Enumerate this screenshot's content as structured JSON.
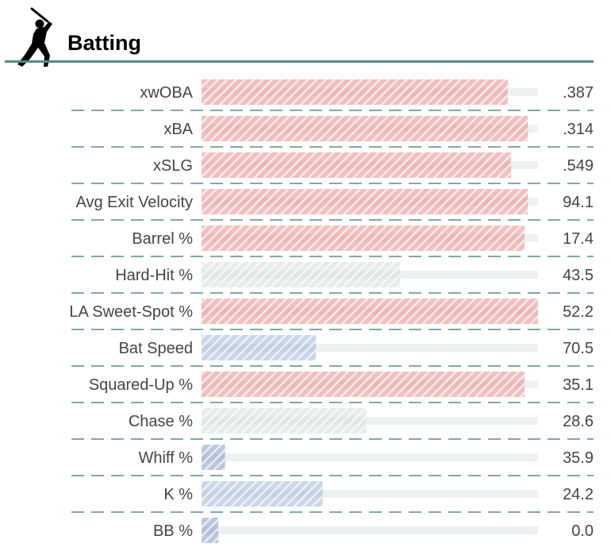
{
  "header": {
    "title": "Batting",
    "icon": "batter-silhouette-icon",
    "rule_color": "#5a8a8a"
  },
  "colors": {
    "high": "#e38a88",
    "neutral": "#cfdcd8",
    "low": "#9fb2d2",
    "very_low": "#7f96c2",
    "track": "#edf1f1",
    "divider": "#5a8a8a"
  },
  "chart_data": {
    "type": "bar",
    "orientation": "horizontal",
    "title": "Batting",
    "percentile_range": [
      0,
      100
    ],
    "grid": false,
    "legend": "none",
    "rows": [
      {
        "label": "xwOBA",
        "value_text": ".387",
        "percentile": 91,
        "tier": "high"
      },
      {
        "label": "xBA",
        "value_text": ".314",
        "percentile": 97,
        "tier": "high"
      },
      {
        "label": "xSLG",
        "value_text": ".549",
        "percentile": 92,
        "tier": "high"
      },
      {
        "label": "Avg Exit Velocity",
        "value_text": "94.1",
        "percentile": 97,
        "tier": "high"
      },
      {
        "label": "Barrel %",
        "value_text": "17.4",
        "percentile": 96,
        "tier": "high"
      },
      {
        "label": "Hard-Hit %",
        "value_text": "43.5",
        "percentile": 59,
        "tier": "neutral"
      },
      {
        "label": "LA Sweet-Spot %",
        "value_text": "52.2",
        "percentile": 100,
        "tier": "high"
      },
      {
        "label": "Bat Speed",
        "value_text": "70.5",
        "percentile": 34,
        "tier": "low"
      },
      {
        "label": "Squared-Up %",
        "value_text": "35.1",
        "percentile": 96,
        "tier": "high"
      },
      {
        "label": "Chase %",
        "value_text": "28.6",
        "percentile": 49,
        "tier": "neutral"
      },
      {
        "label": "Whiff %",
        "value_text": "35.9",
        "percentile": 7,
        "tier": "very_low"
      },
      {
        "label": "K %",
        "value_text": "24.2",
        "percentile": 36,
        "tier": "low"
      },
      {
        "label": "BB %",
        "value_text": "0.0",
        "percentile": 5,
        "tier": "very_low"
      }
    ]
  }
}
